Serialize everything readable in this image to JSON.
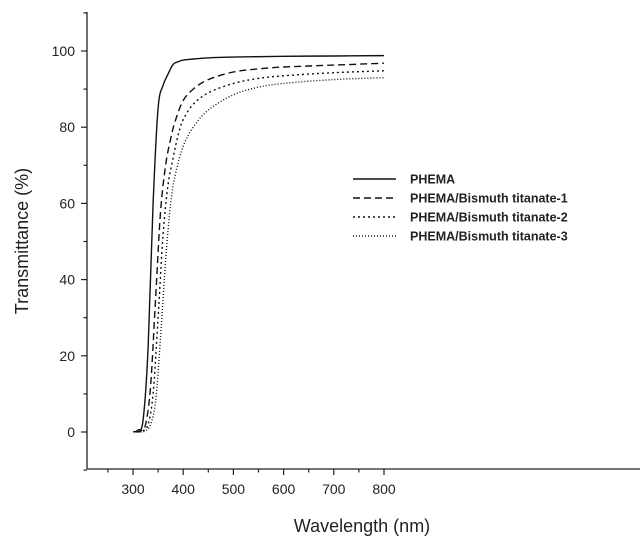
{
  "chart_data": {
    "type": "line",
    "xlabel": "Wavelength (nm)",
    "ylabel": "Transmittance (%)",
    "xlim": [
      250,
      820
    ],
    "ylim": [
      -10,
      110
    ],
    "xticks": [
      300,
      400,
      500,
      600,
      700,
      800
    ],
    "yticks": [
      0,
      20,
      40,
      60,
      80,
      100
    ],
    "grid": false,
    "legend_position": "right-middle",
    "series": [
      {
        "name": "PHEMA",
        "style": "solid",
        "x": [
          300,
          310,
          320,
          330,
          340,
          350,
          360,
          370,
          380,
          390,
          400,
          420,
          450,
          500,
          600,
          700,
          800
        ],
        "y": [
          0,
          0.5,
          3,
          22,
          60,
          85,
          91,
          94,
          96.5,
          97.2,
          97.6,
          97.9,
          98.2,
          98.4,
          98.6,
          98.7,
          98.8
        ]
      },
      {
        "name": "PHEMA/Bismuth titanate-1",
        "style": "dashed",
        "x": [
          305,
          315,
          325,
          335,
          345,
          355,
          365,
          375,
          385,
          400,
          420,
          450,
          500,
          550,
          600,
          700,
          800
        ],
        "y": [
          0,
          0.3,
          2,
          12,
          35,
          58,
          70,
          77,
          82,
          87,
          90,
          92.5,
          94.5,
          95.3,
          95.8,
          96.3,
          96.8
        ]
      },
      {
        "name": "PHEMA/Bismuth titanate-2",
        "style": "dotted",
        "x": [
          310,
          320,
          330,
          340,
          350,
          360,
          370,
          380,
          390,
          400,
          420,
          450,
          500,
          550,
          600,
          700,
          800
        ],
        "y": [
          0,
          0.3,
          2,
          10,
          30,
          52,
          65,
          72,
          78,
          82,
          86,
          89,
          91.5,
          92.8,
          93.5,
          94.3,
          94.8
        ]
      },
      {
        "name": "PHEMA/Bismuth titanate-3",
        "style": "fine-dotted",
        "x": [
          315,
          325,
          335,
          345,
          355,
          365,
          375,
          385,
          400,
          420,
          450,
          500,
          550,
          600,
          700,
          800
        ],
        "y": [
          0,
          0.3,
          2,
          8,
          25,
          45,
          60,
          68,
          75,
          80,
          84.5,
          88.5,
          90.5,
          91.5,
          92.5,
          93
        ]
      }
    ]
  }
}
